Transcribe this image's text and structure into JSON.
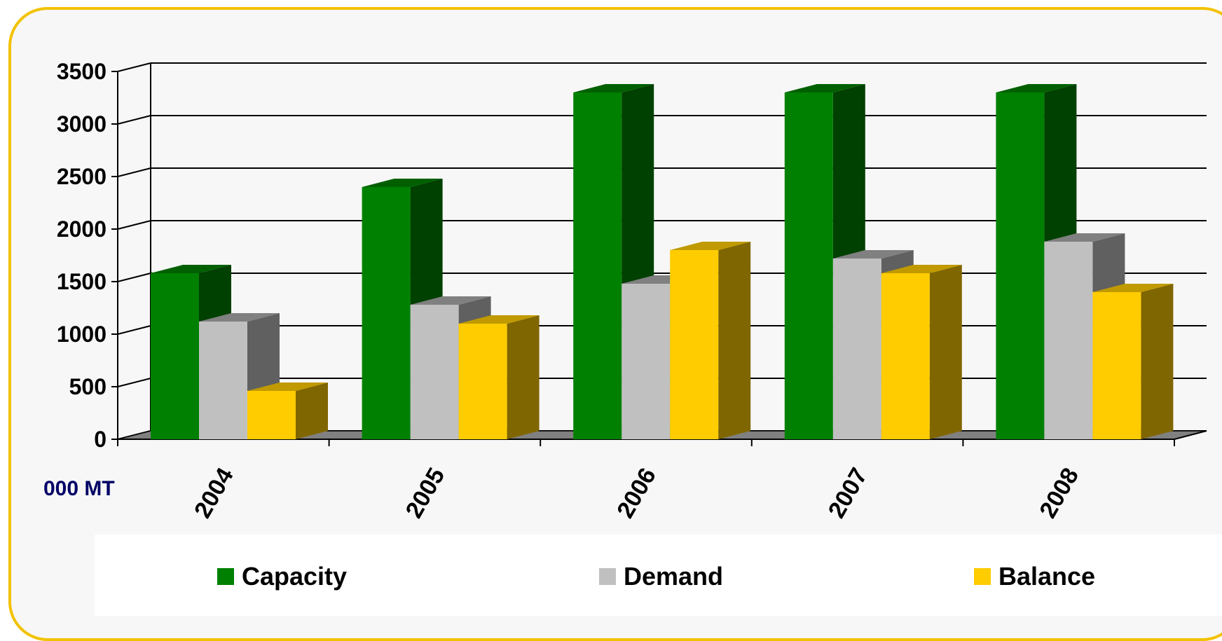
{
  "chart_data": {
    "type": "bar",
    "title": "",
    "ylabel": "000 MT",
    "xlabel": "",
    "ylim": [
      0,
      3500
    ],
    "yticks": [
      0,
      500,
      1000,
      1500,
      2000,
      2500,
      3000,
      3500
    ],
    "categories": [
      "2004",
      "2005",
      "2006",
      "2007",
      "2008"
    ],
    "grid": true,
    "legend_position": "bottom",
    "series": [
      {
        "name": "Capacity",
        "values": [
          1580,
          2400,
          3300,
          3300,
          3300
        ],
        "color": "#008000",
        "side": "#004000",
        "top": "#006000"
      },
      {
        "name": "Demand",
        "values": [
          1120,
          1280,
          1480,
          1720,
          1880
        ],
        "color": "#c0c0c0",
        "side": "#606060",
        "top": "#808080"
      },
      {
        "name": "Balance",
        "values": [
          460,
          1100,
          1800,
          1580,
          1400
        ],
        "color": "#ffcc00",
        "side": "#806600",
        "top": "#c09a00"
      }
    ]
  }
}
